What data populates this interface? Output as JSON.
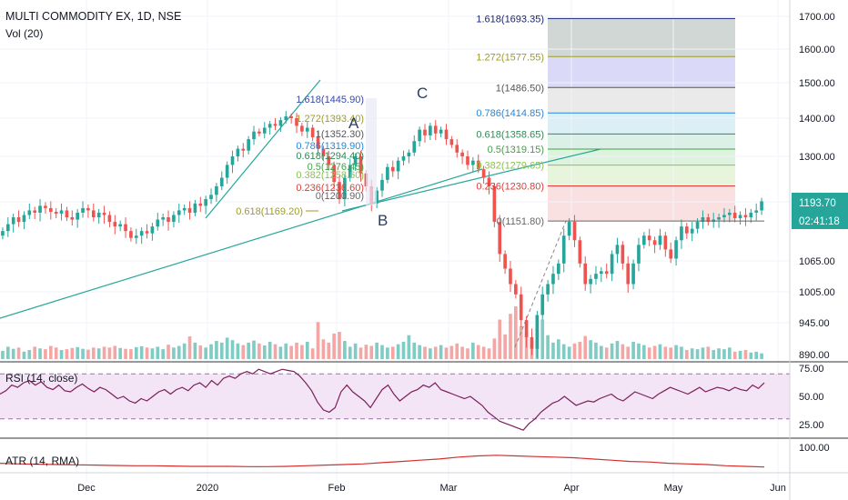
{
  "header": {
    "title": "MULTI COMMODITY EX, 1D, NSE",
    "volume_label": "Vol (20)"
  },
  "colors": {
    "up": "#26a69a",
    "down": "#ef5350",
    "up_vol": "#80cbc4",
    "down_vol": "#f4a6a4",
    "trend": "#26a69a",
    "rsi_line": "#7b1f5b",
    "rsi_fill": "#f3e5f5",
    "atr_line": "#d32f2f"
  },
  "chart_data": [
    {
      "type": "candlestick",
      "title": "MULTI COMMODITY EX, 1D, NSE",
      "ylim": [
        880,
        1730
      ],
      "y_ticks": [
        "1700.00",
        "1600.00",
        "1500.00",
        "1400.00",
        "1300.00",
        "1193.70",
        "1065.00",
        "1005.00",
        "945.00",
        "890.00"
      ],
      "last_price": "1193.70",
      "countdown": "02:41:18",
      "x_ticks": [
        "Dec",
        "2020",
        "Feb",
        "Mar",
        "Apr",
        "May",
        "Jun"
      ],
      "wave_labels": [
        "A",
        "B",
        "C"
      ],
      "closes": [
        1130,
        1145,
        1160,
        1150,
        1165,
        1175,
        1170,
        1185,
        1180,
        1172,
        1168,
        1175,
        1160,
        1155,
        1170,
        1180,
        1175,
        1160,
        1170,
        1165,
        1150,
        1140,
        1145,
        1130,
        1115,
        1120,
        1130,
        1125,
        1140,
        1155,
        1160,
        1150,
        1165,
        1175,
        1180,
        1170,
        1190,
        1185,
        1200,
        1210,
        1230,
        1250,
        1280,
        1300,
        1320,
        1315,
        1345,
        1365,
        1360,
        1375,
        1385,
        1380,
        1395,
        1405,
        1400,
        1380,
        1365,
        1375,
        1350,
        1320,
        1300,
        1280,
        1240,
        1200,
        1250,
        1280,
        1300,
        1260,
        1230,
        1190,
        1220,
        1245,
        1275,
        1265,
        1290,
        1300,
        1310,
        1340,
        1370,
        1355,
        1380,
        1360,
        1370,
        1345,
        1330,
        1310,
        1300,
        1280,
        1290,
        1270,
        1250,
        1230,
        1150,
        1080,
        1050,
        1020,
        1000,
        950,
        920,
        900,
        960,
        1000,
        1020,
        1040,
        1060,
        1120,
        1150,
        1110,
        1060,
        1020,
        1030,
        1040,
        1045,
        1040,
        1080,
        1100,
        1060,
        1020,
        1060,
        1100,
        1120,
        1110,
        1100,
        1120,
        1090,
        1070,
        1110,
        1140,
        1125,
        1135,
        1150,
        1160,
        1150,
        1155,
        1160,
        1165,
        1170,
        1158,
        1165,
        1160,
        1170,
        1175,
        1195
      ],
      "volumes": [
        20,
        30,
        25,
        28,
        18,
        22,
        30,
        26,
        24,
        32,
        28,
        22,
        24,
        27,
        29,
        25,
        23,
        28,
        26,
        30,
        28,
        32,
        27,
        25,
        24,
        29,
        31,
        28,
        26,
        30,
        24,
        35,
        28,
        32,
        38,
        55,
        40,
        33,
        28,
        36,
        44,
        40,
        52,
        46,
        38,
        34,
        40,
        45,
        38,
        33,
        42,
        36,
        30,
        38,
        32,
        40,
        34,
        42,
        26,
        90,
        48,
        40,
        62,
        66,
        44,
        30,
        38,
        28,
        35,
        32,
        40,
        34,
        28,
        30,
        36,
        42,
        58,
        40,
        34,
        30,
        26,
        30,
        34,
        28,
        32,
        38,
        30,
        26,
        40,
        34,
        30,
        26,
        50,
        96,
        60,
        110,
        128,
        80,
        62,
        46,
        70,
        96,
        58,
        40,
        48,
        36,
        30,
        38,
        42,
        56,
        46,
        40,
        32,
        28,
        38,
        44,
        36,
        30,
        42,
        38,
        34,
        28,
        32,
        36,
        30,
        28,
        34,
        30,
        22,
        26,
        24,
        28,
        30,
        22,
        26,
        24,
        28,
        18,
        20,
        22,
        16,
        18,
        14
      ],
      "fib_left": [
        "1.618(1445.90)",
        "1.272(1393.40)",
        "1(1352.30)",
        "0.786(1319.90)",
        "0.618(1294.40)",
        "0.5(1276.45)",
        "0.382(1258.60)",
        "0.236(1236.60)",
        "0(1200.90)",
        "0.618(1169.20)"
      ],
      "fib_right": [
        {
          "label": "1.618(1693.35)",
          "value": 1693.35,
          "color": "#1a237e",
          "fill": "#c8d0cc"
        },
        {
          "label": "1.272(1577.55)",
          "value": 1577.55,
          "color": "#9e9d24",
          "fill": "#d4d4f7"
        },
        {
          "label": "1(1486.50)",
          "value": 1486.5,
          "color": "#555555",
          "fill": "#e6e6e6"
        },
        {
          "label": "0.786(1414.85)",
          "value": 1414.85,
          "color": "#1e88e5",
          "fill": "#d6ecf5"
        },
        {
          "label": "0.618(1358.65)",
          "value": 1358.65,
          "color": "#2e8b57",
          "fill": "#d5efe3"
        },
        {
          "label": "0.5(1319.15)",
          "value": 1319.15,
          "color": "#43a047",
          "fill": "#d8f1d8"
        },
        {
          "label": "0.382(1279.65)",
          "value": 1279.65,
          "color": "#8bc34a",
          "fill": "#e3f3d6"
        },
        {
          "label": "0.236(1230.80)",
          "value": 1230.8,
          "color": "#e53935",
          "fill": "#f9dcdc"
        },
        {
          "label": "0(1151.80)",
          "value": 1151.8,
          "color": "#666666",
          "fill": null
        }
      ]
    },
    {
      "type": "line",
      "title": "RSI (14, close)",
      "ylim": [
        15,
        80
      ],
      "y_ticks": [
        "75.00",
        "50.00",
        "25.00"
      ],
      "band": [
        30,
        70
      ],
      "values": [
        52,
        55,
        60,
        58,
        62,
        64,
        60,
        63,
        58,
        56,
        60,
        55,
        54,
        58,
        61,
        57,
        54,
        58,
        56,
        52,
        48,
        50,
        46,
        44,
        48,
        46,
        50,
        54,
        56,
        52,
        56,
        58,
        55,
        60,
        62,
        58,
        64,
        60,
        66,
        68,
        66,
        70,
        72,
        70,
        74,
        72,
        70,
        72,
        74,
        73,
        72,
        68,
        62,
        55,
        45,
        38,
        36,
        40,
        54,
        60,
        54,
        50,
        46,
        40,
        48,
        56,
        60,
        52,
        46,
        50,
        54,
        56,
        60,
        58,
        62,
        56,
        54,
        52,
        50,
        48,
        50,
        46,
        42,
        36,
        32,
        28,
        26,
        24,
        22,
        20,
        26,
        30,
        36,
        40,
        44,
        46,
        50,
        46,
        42,
        44,
        46,
        45,
        48,
        50,
        52,
        48,
        46,
        50,
        54,
        52,
        50,
        48,
        52,
        55,
        58,
        56,
        54,
        52,
        55,
        58,
        54,
        56,
        58,
        57,
        55,
        58,
        56,
        55,
        60,
        57,
        62
      ]
    },
    {
      "type": "line",
      "title": "ATR (14, RMA)",
      "y_ticks": [
        "100.00"
      ],
      "values": [
        48,
        46,
        45,
        44,
        43,
        42,
        41,
        40,
        40,
        39,
        38,
        38,
        38,
        37,
        37,
        38,
        40,
        42,
        44,
        46,
        50,
        54,
        58,
        62,
        68,
        72,
        74,
        72,
        70,
        68,
        66,
        62,
        58,
        54,
        52,
        48,
        46,
        44,
        40,
        38,
        36
      ]
    }
  ]
}
